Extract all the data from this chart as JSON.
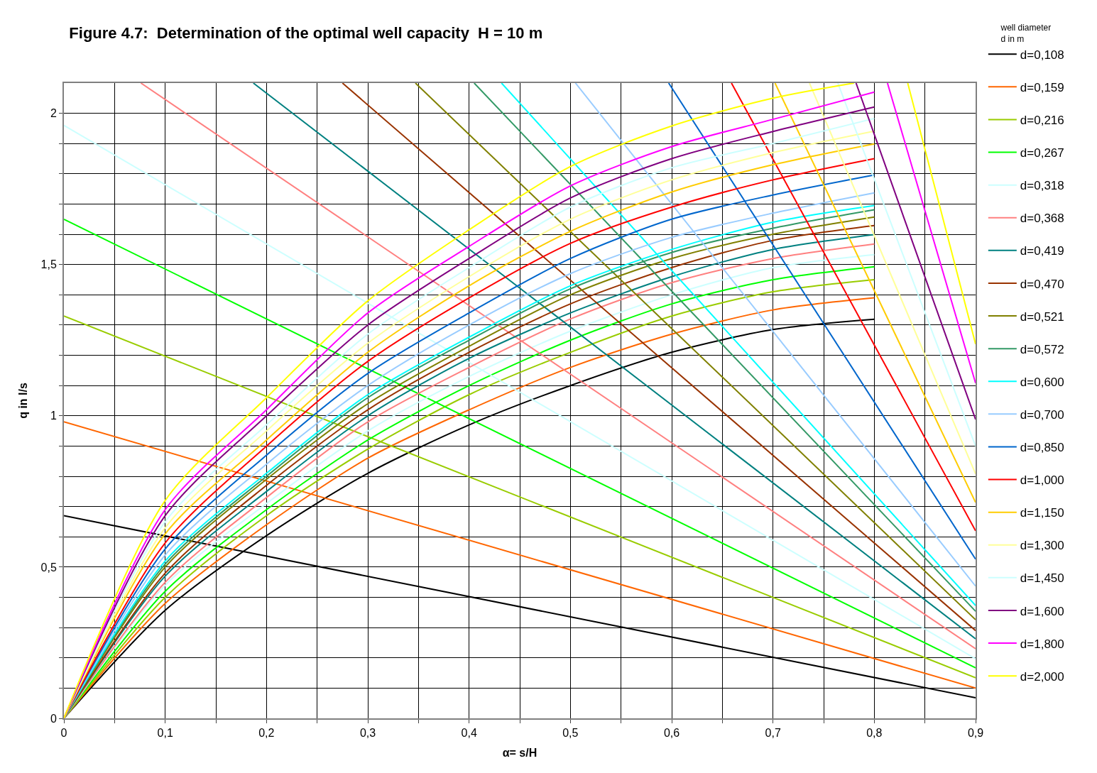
{
  "chart_data": {
    "type": "line",
    "title": "Figure 4.7:  Determination of the optimal well capacity  H = 10 m",
    "xlabel": "α= s/H",
    "ylabel": "q in l/s",
    "legend_title": "well diameter\nd in m",
    "legend": "right",
    "grid": true,
    "line_style": "solid",
    "xlim": [
      0,
      0.9
    ],
    "ylim": [
      0,
      2.1
    ],
    "xticks": [
      0,
      {
        "value": 0.05,
        "label": null
      },
      {
        "value": 0.1,
        "label": "0,1"
      },
      {
        "value": 0.15,
        "label": null
      },
      {
        "value": 0.2,
        "label": "0,2"
      },
      {
        "value": 0.25,
        "label": null
      },
      {
        "value": 0.3,
        "label": "0,3"
      },
      {
        "value": 0.35,
        "label": null
      },
      {
        "value": 0.4,
        "label": "0,4"
      },
      {
        "value": 0.45,
        "label": null
      },
      {
        "value": 0.5,
        "label": "0,5"
      },
      {
        "value": 0.55,
        "label": null
      },
      {
        "value": 0.6,
        "label": "0,6"
      },
      {
        "value": 0.65,
        "label": null
      },
      {
        "value": 0.7,
        "label": "0,7"
      },
      {
        "value": 0.75,
        "label": null
      },
      {
        "value": 0.8,
        "label": "0,8"
      },
      {
        "value": 0.85,
        "label": null
      },
      {
        "value": 0.9,
        "label": "0,9"
      }
    ],
    "yticks": [
      0,
      {
        "value": 0.1,
        "label": null
      },
      {
        "value": 0.2,
        "label": null
      },
      {
        "value": 0.3,
        "label": null
      },
      {
        "value": 0.4,
        "label": null
      },
      {
        "value": 0.5,
        "label": "0,5"
      },
      {
        "value": 0.6,
        "label": null
      },
      {
        "value": 0.7,
        "label": null
      },
      {
        "value": 0.8,
        "label": null
      },
      {
        "value": 0.9,
        "label": null
      },
      1,
      {
        "value": 1.1,
        "label": null
      },
      {
        "value": 1.2,
        "label": null
      },
      {
        "value": 1.3,
        "label": null
      },
      {
        "value": 1.4,
        "label": null
      },
      {
        "value": 1.5,
        "label": "1,5"
      },
      {
        "value": 1.6,
        "label": null
      },
      {
        "value": 1.7,
        "label": null
      },
      {
        "value": 1.8,
        "label": null
      },
      {
        "value": 1.9,
        "label": null
      },
      2
    ],
    "series": [
      {
        "name": "d=0,108",
        "color": "#000000",
        "x": [
          0,
          0.1,
          0.2,
          0.3,
          0.4,
          0.5,
          0.6,
          0.7,
          0.8
        ],
        "values": [
          0,
          0.357,
          0.604,
          0.81,
          0.97,
          1.1,
          1.21,
          1.285,
          1.319
        ]
      },
      {
        "color": "#000000",
        "x": [
          0,
          0.9
        ],
        "values": [
          0.67,
          0.068
        ]
      },
      {
        "name": "d=0,159",
        "color": "#ff6600",
        "x": [
          0,
          0.1,
          0.2,
          0.3,
          0.4,
          0.5,
          0.6,
          0.7,
          0.8
        ],
        "values": [
          0,
          0.38,
          0.64,
          0.86,
          1.02,
          1.16,
          1.27,
          1.35,
          1.39
        ]
      },
      {
        "color": "#ff6600",
        "x": [
          0,
          0.9
        ],
        "values": [
          0.98,
          0.1
        ]
      },
      {
        "name": "d=0,216",
        "color": "#99cc00",
        "x": [
          0,
          0.1,
          0.2,
          0.3,
          0.4,
          0.5,
          0.6,
          0.7,
          0.8
        ],
        "values": [
          0,
          0.4,
          0.67,
          0.89,
          1.07,
          1.21,
          1.33,
          1.41,
          1.45
        ]
      },
      {
        "color": "#99cc00",
        "x": [
          0,
          0.9
        ],
        "values": [
          1.33,
          0.134
        ]
      },
      {
        "name": "d=0,267",
        "color": "#00ff00",
        "x": [
          0,
          0.1,
          0.2,
          0.3,
          0.4,
          0.5,
          0.6,
          0.7,
          0.8
        ],
        "values": [
          0,
          0.42,
          0.69,
          0.92,
          1.1,
          1.25,
          1.37,
          1.45,
          1.493
        ]
      },
      {
        "color": "#00ff00",
        "x": [
          0,
          0.9
        ],
        "values": [
          1.65,
          0.167
        ]
      },
      {
        "name": "d=0,318",
        "color": "#ccffff",
        "x": [
          0,
          0.1,
          0.2,
          0.3,
          0.4,
          0.5,
          0.6,
          0.7,
          0.8
        ],
        "values": [
          0,
          0.44,
          0.71,
          0.95,
          1.13,
          1.28,
          1.4,
          1.49,
          1.533
        ]
      },
      {
        "color": "#ccffff",
        "x": [
          0,
          0.9
        ],
        "values": [
          1.96,
          0.197
        ]
      },
      {
        "name": "d=0,368",
        "color": "#ff8080",
        "x": [
          0,
          0.1,
          0.2,
          0.3,
          0.4,
          0.5,
          0.6,
          0.7,
          0.8
        ],
        "values": [
          0,
          0.45,
          0.73,
          0.98,
          1.16,
          1.32,
          1.44,
          1.52,
          1.568
        ]
      },
      {
        "color": "#ff8080",
        "x": [
          0.076,
          0.9
        ],
        "values": [
          2.1,
          0.23
        ]
      },
      {
        "name": "d=0,419",
        "color": "#008080",
        "x": [
          0,
          0.1,
          0.2,
          0.3,
          0.4,
          0.5,
          0.6,
          0.7,
          0.8
        ],
        "values": [
          0,
          0.47,
          0.75,
          1.0,
          1.19,
          1.34,
          1.46,
          1.55,
          1.599
        ]
      },
      {
        "color": "#008080",
        "x": [
          0.187,
          0.9
        ],
        "values": [
          2.1,
          0.263
        ]
      },
      {
        "name": "d=0,470",
        "color": "#993300",
        "x": [
          0,
          0.1,
          0.2,
          0.3,
          0.4,
          0.5,
          0.6,
          0.7,
          0.8
        ],
        "values": [
          0,
          0.48,
          0.77,
          1.02,
          1.21,
          1.37,
          1.49,
          1.58,
          1.629
        ]
      },
      {
        "color": "#993300",
        "x": [
          0.275,
          0.9
        ],
        "values": [
          2.1,
          0.29
        ]
      },
      {
        "name": "d=0,521",
        "color": "#808000",
        "x": [
          0,
          0.1,
          0.2,
          0.3,
          0.4,
          0.5,
          0.6,
          0.7,
          0.8
        ],
        "values": [
          0,
          0.5,
          0.79,
          1.04,
          1.23,
          1.4,
          1.52,
          1.6,
          1.657
        ]
      },
      {
        "color": "#808000",
        "x": [
          0.347,
          0.9
        ],
        "values": [
          2.1,
          0.326
        ]
      },
      {
        "name": "d=0,572",
        "color": "#339966",
        "x": [
          0,
          0.1,
          0.2,
          0.3,
          0.4,
          0.5,
          0.6,
          0.7,
          0.8
        ],
        "values": [
          0,
          0.51,
          0.8,
          1.06,
          1.25,
          1.42,
          1.54,
          1.62,
          1.681
        ]
      },
      {
        "color": "#339966",
        "x": [
          0.405,
          0.9
        ],
        "values": [
          2.1,
          0.354
        ]
      },
      {
        "name": "d=0,600",
        "color": "#00ffff",
        "x": [
          0,
          0.1,
          0.2,
          0.3,
          0.4,
          0.5,
          0.6,
          0.7,
          0.8
        ],
        "values": [
          0,
          0.52,
          0.81,
          1.07,
          1.26,
          1.43,
          1.55,
          1.64,
          1.695
        ]
      },
      {
        "color": "#00ffff",
        "x": [
          0.432,
          0.9
        ],
        "values": [
          2.1,
          0.373
        ]
      },
      {
        "name": "d=0,700",
        "color": "#99ccff",
        "x": [
          0,
          0.1,
          0.2,
          0.3,
          0.4,
          0.5,
          0.6,
          0.7,
          0.8
        ],
        "values": [
          0,
          0.54,
          0.84,
          1.1,
          1.3,
          1.47,
          1.59,
          1.67,
          1.737
        ]
      },
      {
        "color": "#99ccff",
        "x": [
          0.505,
          0.9
        ],
        "values": [
          2.1,
          0.437
        ]
      },
      {
        "name": "d=0,850",
        "color": "#0066cc",
        "x": [
          0,
          0.1,
          0.2,
          0.3,
          0.4,
          0.5,
          0.6,
          0.7,
          0.8
        ],
        "values": [
          0,
          0.56,
          0.87,
          1.14,
          1.34,
          1.52,
          1.65,
          1.73,
          1.796
        ]
      },
      {
        "color": "#0066cc",
        "x": [
          0.597,
          0.9
        ],
        "values": [
          2.1,
          0.526
        ]
      },
      {
        "name": "d=1,000",
        "color": "#ff0000",
        "x": [
          0,
          0.1,
          0.2,
          0.3,
          0.4,
          0.5,
          0.6,
          0.7,
          0.8
        ],
        "values": [
          0,
          0.58,
          0.9,
          1.18,
          1.39,
          1.57,
          1.69,
          1.78,
          1.85
        ]
      },
      {
        "color": "#ff0000",
        "x": [
          0.659,
          0.9
        ],
        "values": [
          2.1,
          0.62
        ]
      },
      {
        "name": "d=1,150",
        "color": "#ffcc00",
        "x": [
          0,
          0.1,
          0.2,
          0.3,
          0.4,
          0.5,
          0.6,
          0.7,
          0.8
        ],
        "values": [
          0,
          0.61,
          0.92,
          1.21,
          1.43,
          1.61,
          1.74,
          1.83,
          1.899
        ]
      },
      {
        "color": "#ffcc00",
        "x": [
          0.702,
          0.9
        ],
        "values": [
          2.1,
          0.714
        ]
      },
      {
        "name": "d=1,300",
        "color": "#ffff99",
        "x": [
          0,
          0.1,
          0.2,
          0.3,
          0.4,
          0.5,
          0.6,
          0.7,
          0.8
        ],
        "values": [
          0,
          0.63,
          0.95,
          1.24,
          1.46,
          1.65,
          1.78,
          1.87,
          1.941
        ]
      },
      {
        "color": "#ffff99",
        "x": [
          0.736,
          0.9
        ],
        "values": [
          2.1,
          0.808
        ]
      },
      {
        "name": "d=1,450",
        "color": "#ccffff",
        "x": [
          0,
          0.1,
          0.2,
          0.3,
          0.4,
          0.5,
          0.6,
          0.7,
          0.8
        ],
        "values": [
          0,
          0.65,
          0.97,
          1.27,
          1.49,
          1.69,
          1.82,
          1.9,
          1.983
        ]
      },
      {
        "color": "#ccffff",
        "x": [
          0.764,
          0.9
        ],
        "values": [
          2.1,
          0.9
        ]
      },
      {
        "name": "d=1,600",
        "color": "#800080",
        "x": [
          0,
          0.1,
          0.2,
          0.3,
          0.4,
          0.5,
          0.6,
          0.7,
          0.8
        ],
        "values": [
          0,
          0.67,
          1.0,
          1.3,
          1.52,
          1.72,
          1.85,
          1.94,
          2.021
        ]
      },
      {
        "color": "#800080",
        "x": [
          0.782,
          0.9
        ],
        "values": [
          2.1,
          0.988
        ]
      },
      {
        "name": "d=1,800",
        "color": "#ff00ff",
        "x": [
          0,
          0.1,
          0.2,
          0.3,
          0.4,
          0.5,
          0.6,
          0.7,
          0.8
        ],
        "values": [
          0,
          0.69,
          1.02,
          1.34,
          1.56,
          1.76,
          1.89,
          1.98,
          2.07
        ]
      },
      {
        "color": "#ff00ff",
        "x": [
          0.813,
          0.9
        ],
        "values": [
          2.1,
          1.108
        ]
      },
      {
        "name": "d=2,000",
        "color": "#ffff00",
        "x": [
          0,
          0.1,
          0.2,
          0.3,
          0.4,
          0.5,
          0.6,
          0.7,
          0.78
        ],
        "values": [
          0,
          0.72,
          1.06,
          1.38,
          1.615,
          1.824,
          1.958,
          2.05,
          2.1
        ]
      },
      {
        "color": "#ffff00",
        "x": [
          0.833,
          0.9
        ],
        "values": [
          2.1,
          1.237
        ]
      }
    ]
  }
}
